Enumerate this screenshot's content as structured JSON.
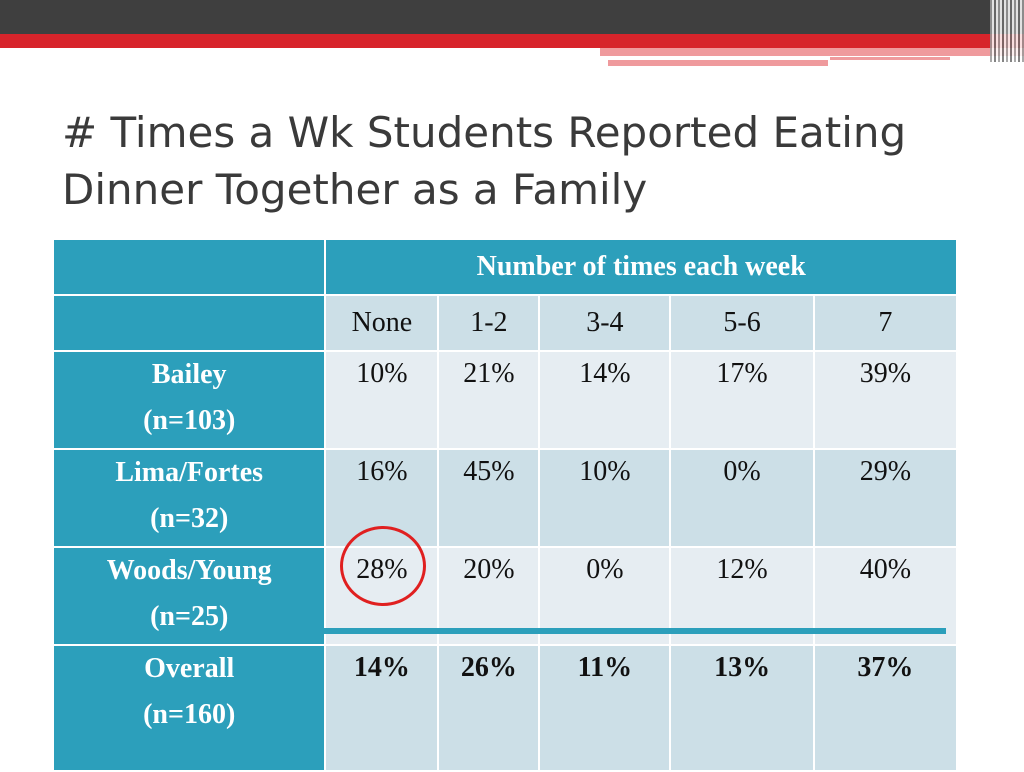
{
  "slide": {
    "title": "# Times a Wk Students Reported Eating Dinner Together as a Family"
  },
  "table": {
    "group_header": "Number of times each week",
    "columns": [
      "None",
      "1-2",
      "3-4",
      "5-6",
      "7"
    ],
    "rows": [
      {
        "label_line1": "Bailey",
        "label_line2": "(n=103)",
        "values": [
          "10%",
          "21%",
          "14%",
          "17%",
          "39%"
        ]
      },
      {
        "label_line1": "Lima/Fortes",
        "label_line2": "(n=32)",
        "values": [
          "16%",
          "45%",
          "10%",
          "0%",
          "29%"
        ]
      },
      {
        "label_line1": "Woods/Young",
        "label_line2": "(n=25)",
        "values": [
          "28%",
          "20%",
          "0%",
          "12%",
          "40%"
        ]
      },
      {
        "label_line1": "Overall",
        "label_line2": "(n=160)",
        "values": [
          "14%",
          "26%",
          "11%",
          "13%",
          "37%"
        ]
      }
    ]
  },
  "annotation": {
    "circle_color": "#e02020",
    "highlight": "Woods/Young None value circled"
  }
}
